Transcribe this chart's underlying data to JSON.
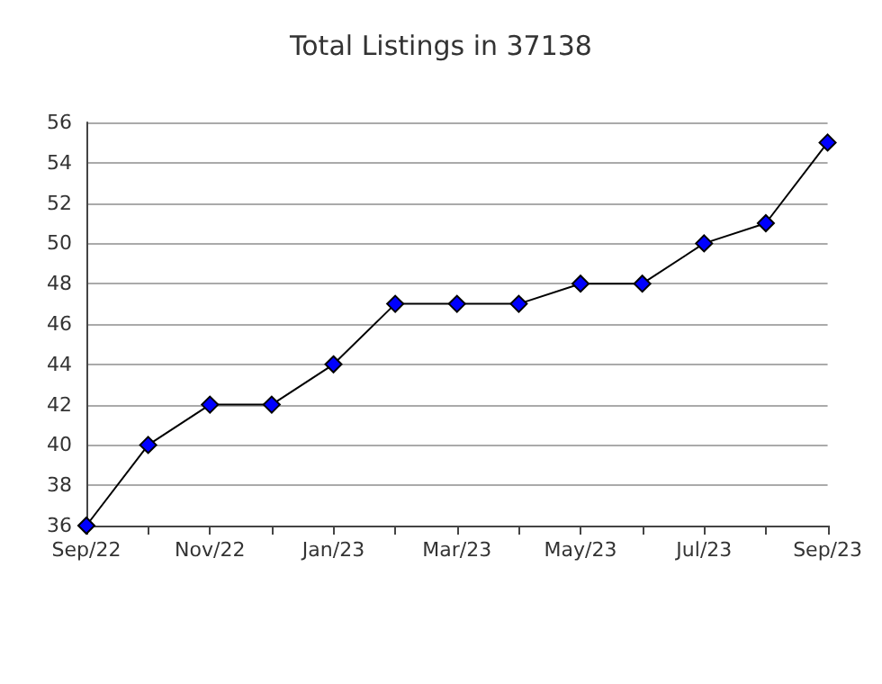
{
  "chart_data": {
    "type": "line",
    "title": "Total Listings in 37138",
    "categories": [
      "Sep/22",
      null,
      "Nov/22",
      null,
      "Jan/23",
      null,
      "Mar/23",
      null,
      "May/23",
      null,
      "Jul/23",
      null,
      "Sep/23"
    ],
    "series": [
      {
        "color": "#0000ff",
        "values": [
          36,
          40,
          42,
          42,
          44,
          47,
          47,
          47,
          48,
          48,
          50,
          51,
          55
        ]
      }
    ],
    "ylim": [
      36,
      56
    ],
    "yticks": [
      36,
      38,
      40,
      42,
      44,
      46,
      48,
      50,
      52,
      54,
      56
    ],
    "grid": "y",
    "marker": "diamond",
    "line_style": "solid"
  }
}
